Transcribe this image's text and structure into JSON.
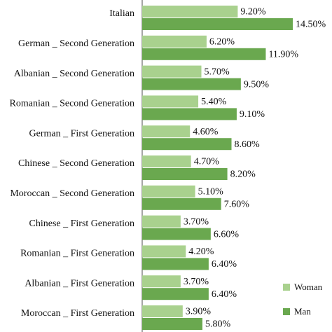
{
  "chart_data": {
    "type": "bar",
    "orientation": "horizontal",
    "categories": [
      "Italian",
      "German _ Second Generation",
      "Albanian _ Second Generation",
      "Romanian _ Second Generation",
      "German _ First Generation",
      "Chinese _ Second Generation",
      "Moroccan _ Second Generation",
      "Chinese _ First Generation",
      "Romanian _ First Generation",
      "Albanian _ First Generation",
      "Moroccan _ First Generation"
    ],
    "series": [
      {
        "name": "Woman",
        "color": "#a9d18e",
        "values": [
          9.2,
          6.2,
          5.7,
          5.4,
          4.6,
          4.7,
          5.1,
          3.7,
          4.2,
          3.7,
          3.9
        ],
        "value_labels": [
          "9.20%",
          "6.20%",
          "5.70%",
          "5.40%",
          "4.60%",
          "4.70%",
          "5.10%",
          "3.70%",
          "4.20%",
          "3.70%",
          "3.90%"
        ]
      },
      {
        "name": "Man",
        "color": "#6aa84f",
        "values": [
          14.5,
          11.9,
          9.5,
          9.1,
          8.6,
          8.2,
          7.6,
          6.6,
          6.4,
          6.4,
          5.8
        ],
        "value_labels": [
          "14.50%",
          "11.90%",
          "9.50%",
          "9.10%",
          "8.60%",
          "8.20%",
          "7.60%",
          "6.60%",
          "6.40%",
          "6.40%",
          "5.80%"
        ]
      }
    ],
    "legend": "bottom-right"
  }
}
